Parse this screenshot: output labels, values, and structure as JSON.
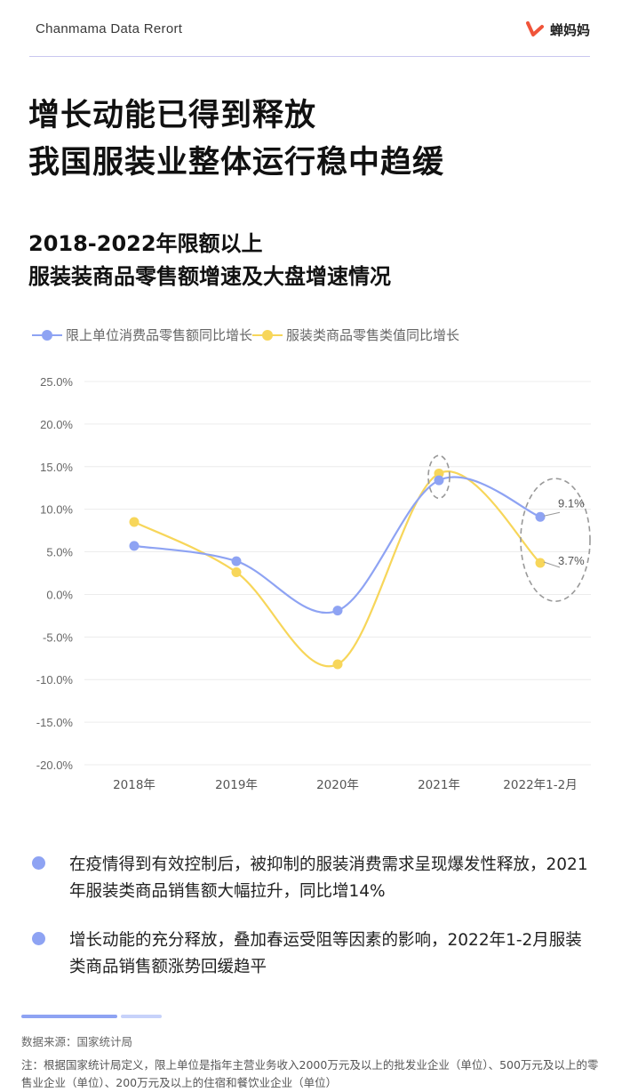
{
  "header": {
    "report_title": "Chanmama Data Rerort",
    "brand_name": "蝉妈妈",
    "brand_color": "#f0543a"
  },
  "main_title": {
    "line1": "增长动能已得到释放",
    "line2": "我国服装业整体运行稳中趋缓"
  },
  "subtitle": {
    "line1": "2018-2022年限额以上",
    "line2": "服装装商品零售额增速及大盘增速情况"
  },
  "chart_data": {
    "type": "line",
    "categories": [
      "2018年",
      "2019年",
      "2020年",
      "2021年",
      "2022年1-2月"
    ],
    "series": [
      {
        "name": "限上单位消费品零售额同比增长",
        "color": "#8ea3f3",
        "values": [
          5.7,
          3.9,
          -1.9,
          13.4,
          9.1
        ]
      },
      {
        "name": "服装类商品零售类值同比增长",
        "color": "#f7d65a",
        "values": [
          8.5,
          2.6,
          -8.2,
          14.2,
          3.7
        ]
      }
    ],
    "yticks": [
      "25.0%",
      "20.0%",
      "15.0%",
      "10.0%",
      "5.0%",
      "0.0%",
      "-5.0%",
      "-10.0%",
      "-15.0%",
      "-20.0%"
    ],
    "ylim": [
      -20,
      25
    ],
    "grid": true,
    "legend_position": "top-left",
    "annotations": [
      {
        "text": "9.1%",
        "series": 0,
        "index": 4
      },
      {
        "text": "3.7%",
        "series": 1,
        "index": 4
      }
    ],
    "highlight_ellipses": [
      3,
      4
    ]
  },
  "bullets": [
    "在疫情得到有效控制后，被抑制的服装消费需求呈现爆发性释放，2021年服装类商品销售额大幅拉升，同比增14%",
    "增长动能的充分释放，叠加春运受阻等因素的影响，2022年1-2月服装类商品销售额涨势回缓趋平"
  ],
  "footer": {
    "source": "数据来源：国家统计局",
    "note": "注：根据国家统计局定义，限上单位是指年主营业务收入2000万元及以上的批发业企业（单位）、500万元及以上的零售业企业（单位）、200万元及以上的住宿和餐饮业企业（单位）"
  }
}
